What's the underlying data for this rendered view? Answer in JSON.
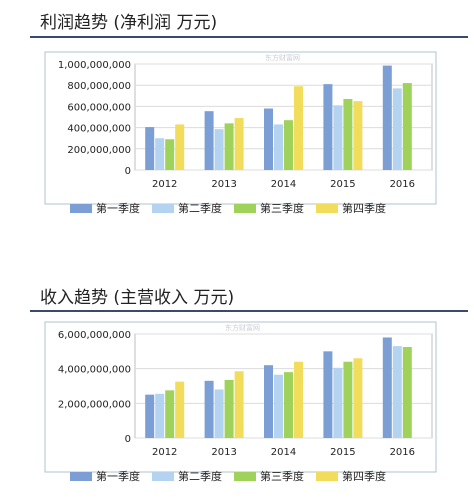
{
  "charts": [
    {
      "title": "利润趋势 (净利润 万元)",
      "watermark": "东方财富网"
    },
    {
      "title": "收入趋势 (主营收入 万元)",
      "watermark": "东方财富网"
    }
  ],
  "colors": {
    "series": [
      "#7b9fd4",
      "#b4d3f0",
      "#9fd25a",
      "#f2dc5c"
    ],
    "rule": "#3a4a68",
    "grid": "#dcdcdc",
    "frame": "#b0c0d0"
  },
  "chart_data": [
    {
      "type": "bar",
      "title": "利润趋势 (净利润 万元)",
      "categories": [
        "2012",
        "2013",
        "2014",
        "2015",
        "2016"
      ],
      "series": [
        {
          "name": "第一季度",
          "values": [
            405000000,
            555000000,
            580000000,
            810000000,
            985000000
          ]
        },
        {
          "name": "第二季度",
          "values": [
            300000000,
            385000000,
            430000000,
            610000000,
            770000000
          ]
        },
        {
          "name": "第三季度",
          "values": [
            290000000,
            440000000,
            470000000,
            670000000,
            820000000
          ]
        },
        {
          "name": "第四季度",
          "values": [
            430000000,
            490000000,
            790000000,
            650000000,
            null
          ]
        }
      ],
      "yticks": [
        "0",
        "200,000,000",
        "400,000,000",
        "600,000,000",
        "800,000,000",
        "1,000,000,000"
      ],
      "ylim": [
        0,
        1000000000
      ],
      "grid": true,
      "legend": "bottom"
    },
    {
      "type": "bar",
      "title": "收入趋势 (主营收入 万元)",
      "categories": [
        "2012",
        "2013",
        "2014",
        "2015",
        "2016"
      ],
      "series": [
        {
          "name": "第一季度",
          "values": [
            2500000000,
            3300000000,
            4200000000,
            5000000000,
            5800000000
          ]
        },
        {
          "name": "第二季度",
          "values": [
            2550000000,
            2800000000,
            3650000000,
            4050000000,
            5300000000
          ]
        },
        {
          "name": "第三季度",
          "values": [
            2750000000,
            3350000000,
            3800000000,
            4400000000,
            5250000000
          ]
        },
        {
          "name": "第四季度",
          "values": [
            3250000000,
            3850000000,
            4400000000,
            4600000000,
            null
          ]
        }
      ],
      "yticks": [
        "0",
        "2,000,000,000",
        "4,000,000,000",
        "6,000,000,000"
      ],
      "ylim": [
        0,
        6000000000
      ],
      "grid": true,
      "legend": "bottom"
    }
  ]
}
